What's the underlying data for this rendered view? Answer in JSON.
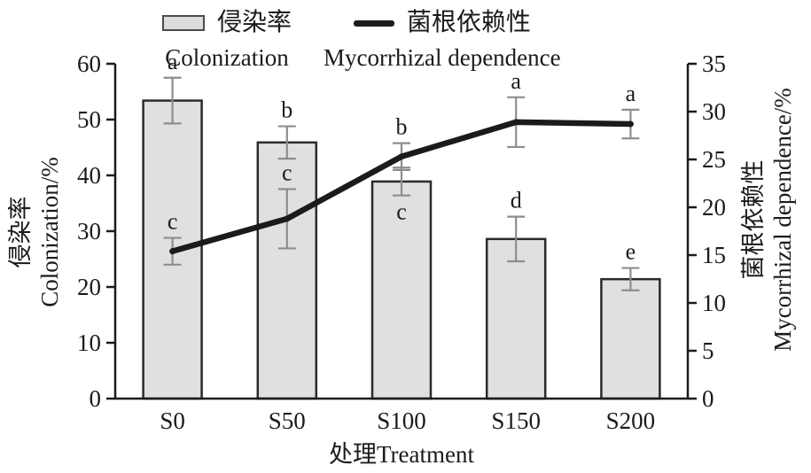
{
  "legend": {
    "bar": {
      "zh": "侵染率",
      "en": "Colonization"
    },
    "line": {
      "zh": "菌根依赖性",
      "en": "Mycorrhizal dependence"
    }
  },
  "axis_labels": {
    "left_zh": "侵染率",
    "left_en": "Colonization/%",
    "right_zh": "菌根依赖性",
    "right_en": "Mycorrhizal dependence/%",
    "x": "处理Treatment"
  },
  "colors": {
    "bar_fill": "#e0e0e0",
    "bar_border": "#2b2b2b",
    "line": "#1b1b1b",
    "error_bar": "#8d8d8d",
    "axis": "#1b1b1b",
    "text": "#1b1b1b"
  },
  "chart_data": {
    "type": "bar+line",
    "categories": [
      "S0",
      "S50",
      "S100",
      "S150",
      "S200"
    ],
    "xlabel": "处理Treatment",
    "series": [
      {
        "name": "侵染率 Colonization",
        "type": "bar",
        "axis": "left",
        "values": [
          53.4,
          45.9,
          38.9,
          28.6,
          21.4
        ],
        "errors": [
          4.1,
          2.9,
          2.5,
          4.0,
          2.0
        ],
        "letters": [
          "a",
          "b",
          "c",
          "d",
          "e"
        ],
        "letter_side": [
          "above",
          "above",
          "below",
          "above",
          "above"
        ]
      },
      {
        "name": "菌根依赖性 Mycorrhizal dependence",
        "type": "line",
        "axis": "right",
        "values": [
          15.4,
          18.8,
          25.3,
          28.9,
          28.7
        ],
        "errors": [
          1.4,
          3.1,
          1.4,
          2.6,
          1.5
        ],
        "letters": [
          "c",
          "c",
          "b",
          "a",
          "a"
        ],
        "letter_side": [
          "above",
          "above",
          "above",
          "above",
          "above"
        ]
      }
    ],
    "left_axis": {
      "label": "侵染率 Colonization/%",
      "min": 0,
      "max": 60,
      "step": 10,
      "ticks": [
        0,
        10,
        20,
        30,
        40,
        50,
        60
      ]
    },
    "right_axis": {
      "label": "菌根依赖性 Mycorrhizal dependence/%",
      "min": 0,
      "max": 35,
      "step": 5,
      "ticks": [
        0,
        5,
        10,
        15,
        20,
        25,
        30,
        35
      ]
    },
    "grid": false,
    "legend_position": "top"
  }
}
